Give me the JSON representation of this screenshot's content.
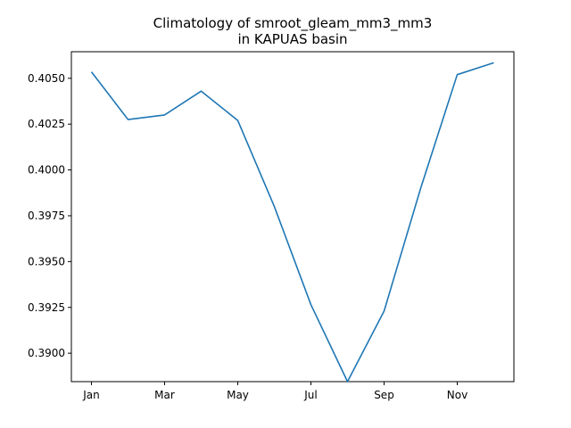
{
  "chart_data": {
    "type": "line",
    "title": "Climatology of smroot_gleam_mm3_mm3",
    "subtitle": "in KAPUAS basin",
    "xlabel": "",
    "ylabel": "",
    "x": [
      "Jan",
      "Feb",
      "Mar",
      "Apr",
      "May",
      "Jun",
      "Jul",
      "Aug",
      "Sep",
      "Oct",
      "Nov",
      "Dec"
    ],
    "x_tick_labels": [
      "Jan",
      "Mar",
      "May",
      "Jul",
      "Sep",
      "Nov"
    ],
    "y_tick_labels": [
      "0.3900",
      "0.3925",
      "0.3950",
      "0.3975",
      "0.4000",
      "0.4025",
      "0.4050"
    ],
    "ylim": [
      0.38845,
      0.40645
    ],
    "grid": false,
    "series": [
      {
        "color": "#1f77b4",
        "values": [
          0.40535,
          0.40275,
          0.403,
          0.4043,
          0.4027,
          0.398,
          0.39265,
          0.38845,
          0.3923,
          0.399,
          0.4052,
          0.40585
        ]
      }
    ]
  }
}
